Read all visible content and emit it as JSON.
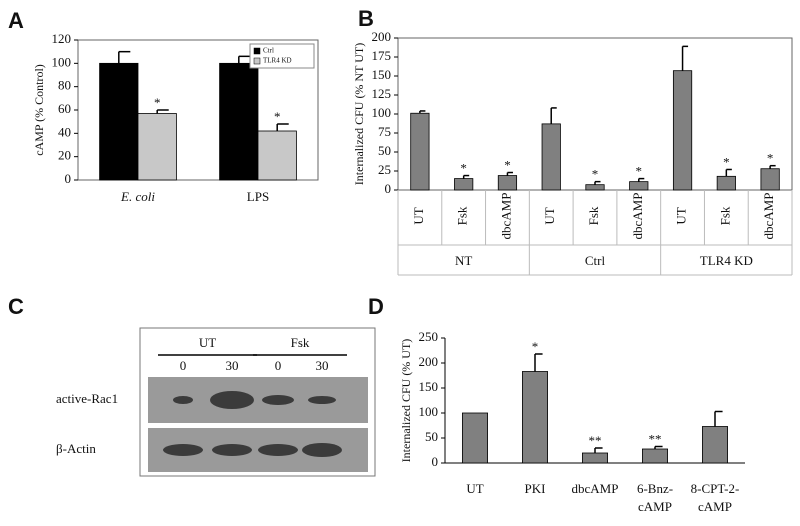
{
  "chart_data": [
    {
      "type": "bar",
      "panel": "A",
      "ylabel": "cAMP (% Control)",
      "categories": [
        "E. coli",
        "LPS"
      ],
      "series": [
        {
          "name": "Ctrl",
          "color": "#000000",
          "values": [
            100,
            100
          ],
          "errors": [
            10,
            6
          ]
        },
        {
          "name": "TLR4 KD",
          "color": "#c8c8c8",
          "values": [
            57,
            42
          ],
          "errors": [
            3,
            6
          ],
          "significance": [
            "*",
            "*"
          ]
        }
      ],
      "ylim": [
        0,
        120
      ],
      "yticks": [
        0,
        20,
        40,
        60,
        80,
        100,
        120
      ]
    },
    {
      "type": "bar",
      "panel": "B",
      "ylabel": "Internalized CFU (% NT UT)",
      "categories": [
        "UT",
        "Fsk",
        "dbcAMP",
        "UT",
        "Fsk",
        "dbcAMP",
        "UT",
        "Fsk",
        "dbcAMP"
      ],
      "groups": [
        "NT",
        "Ctrl",
        "TLR4 KD"
      ],
      "values": [
        101,
        15,
        19,
        87,
        7,
        11,
        157,
        18,
        28
      ],
      "errors": [
        3,
        4,
        4,
        21,
        4,
        4,
        32,
        9,
        4
      ],
      "significance": [
        null,
        "*",
        "*",
        null,
        "*",
        "*",
        null,
        "*",
        "*"
      ],
      "color": "#808080",
      "ylim": [
        0,
        200
      ],
      "yticks": [
        0,
        25,
        50,
        75,
        100,
        125,
        150,
        175,
        200
      ]
    },
    {
      "type": "bar",
      "panel": "D",
      "ylabel": "Internalized CFU (% UT)",
      "categories": [
        [
          "UT"
        ],
        [
          "PKI"
        ],
        [
          "dbcAMP"
        ],
        [
          "6-Bnz-",
          "cAMP"
        ],
        [
          "8-CPT-2-",
          "cAMP"
        ]
      ],
      "values": [
        100,
        183,
        20,
        28,
        73
      ],
      "errors": [
        0,
        35,
        10,
        5,
        30
      ],
      "significance": [
        null,
        "*",
        "**",
        "**",
        null
      ],
      "color": "#808080",
      "ylim": [
        0,
        250
      ],
      "yticks": [
        0,
        50,
        100,
        150,
        200,
        250
      ]
    }
  ],
  "blot": {
    "panel": "C",
    "groups": [
      {
        "label": "UT",
        "times": [
          "0",
          "30"
        ]
      },
      {
        "label": "Fsk",
        "times": [
          "0",
          "30"
        ]
      }
    ],
    "rows": [
      "active-Rac1",
      "β-Actin"
    ]
  }
}
